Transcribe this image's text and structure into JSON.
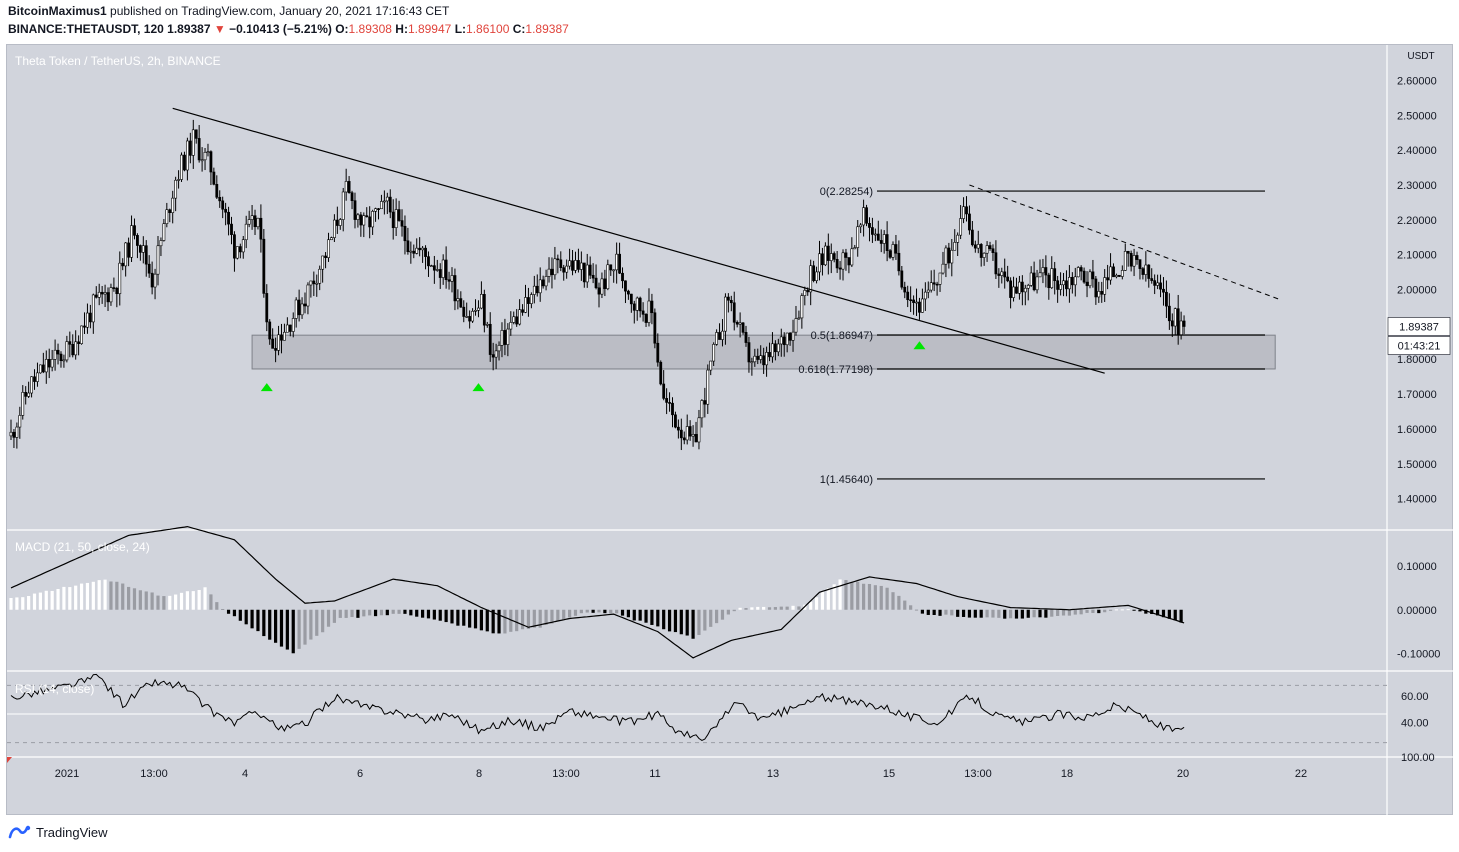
{
  "header": {
    "publisher": "BitcoinMaximus1",
    "published_text": "published on TradingView.com, January 20, 2021 17:16:43 CET",
    "symbol_line": "BINANCE:THETAUSDT, 120",
    "last_price": "1.89387",
    "change": "−0.10413 (−5.21%)",
    "open_label": "O:",
    "open": "1.89308",
    "high_label": "H:",
    "high": "1.89947",
    "low_label": "L:",
    "low": "1.86100",
    "close_label": "C:",
    "close": "1.89387"
  },
  "footer": {
    "brand": "TradingView"
  },
  "colors": {
    "background": "#d1d4dc",
    "candle_up": "#ffffff",
    "candle_down": "#000000",
    "support_zone": "#b3b6bd",
    "marker": "#00e600",
    "macd_hist_light": "#ffffff",
    "macd_hist_gray": "#9a9ca3",
    "macd_hist_dark": "#000000"
  },
  "chart_data": {
    "type": "candlestick",
    "title": "Theta Token / TetherUS, 2h, BINANCE",
    "currency": "USDT",
    "price_axis": {
      "ticks": [
        "2.60000",
        "2.50000",
        "2.40000",
        "2.30000",
        "2.20000",
        "2.10000",
        "2.00000",
        "1.90000",
        "1.80000",
        "1.70000",
        "1.60000",
        "1.50000",
        "1.40000"
      ],
      "range": [
        1.33,
        2.65
      ]
    },
    "last_price_tag": "1.89387",
    "countdown_tag": "01:43:21",
    "time_axis": [
      "2021",
      "13:00",
      "4",
      "6",
      "8",
      "13:00",
      "11",
      "13",
      "15",
      "13:00",
      "18",
      "20",
      "22"
    ],
    "anchors": [
      {
        "t": 0,
        "p": 1.58
      },
      {
        "t": 6,
        "p": 1.72
      },
      {
        "t": 12,
        "p": 1.78
      },
      {
        "t": 20,
        "p": 1.83
      },
      {
        "t": 28,
        "p": 1.95
      },
      {
        "t": 36,
        "p": 2.02
      },
      {
        "t": 42,
        "p": 2.18
      },
      {
        "t": 48,
        "p": 2.03
      },
      {
        "t": 56,
        "p": 2.32
      },
      {
        "t": 62,
        "p": 2.43
      },
      {
        "t": 68,
        "p": 2.35
      },
      {
        "t": 76,
        "p": 2.12
      },
      {
        "t": 84,
        "p": 2.2
      },
      {
        "t": 88,
        "p": 1.84
      },
      {
        "t": 94,
        "p": 1.9
      },
      {
        "t": 100,
        "p": 1.98
      },
      {
        "t": 108,
        "p": 2.12
      },
      {
        "t": 114,
        "p": 2.28
      },
      {
        "t": 120,
        "p": 2.18
      },
      {
        "t": 128,
        "p": 2.24
      },
      {
        "t": 134,
        "p": 2.15
      },
      {
        "t": 140,
        "p": 2.1
      },
      {
        "t": 148,
        "p": 2.05
      },
      {
        "t": 156,
        "p": 1.92
      },
      {
        "t": 160,
        "p": 1.96
      },
      {
        "t": 164,
        "p": 1.8
      },
      {
        "t": 170,
        "p": 1.9
      },
      {
        "t": 176,
        "p": 1.96
      },
      {
        "t": 182,
        "p": 2.05
      },
      {
        "t": 188,
        "p": 2.08
      },
      {
        "t": 194,
        "p": 2.06
      },
      {
        "t": 200,
        "p": 2.0
      },
      {
        "t": 206,
        "p": 2.08
      },
      {
        "t": 212,
        "p": 1.96
      },
      {
        "t": 218,
        "p": 1.93
      },
      {
        "t": 222,
        "p": 1.68
      },
      {
        "t": 228,
        "p": 1.6
      },
      {
        "t": 232,
        "p": 1.55
      },
      {
        "t": 238,
        "p": 1.78
      },
      {
        "t": 244,
        "p": 1.98
      },
      {
        "t": 250,
        "p": 1.82
      },
      {
        "t": 254,
        "p": 1.78
      },
      {
        "t": 260,
        "p": 1.82
      },
      {
        "t": 266,
        "p": 1.9
      },
      {
        "t": 272,
        "p": 2.05
      },
      {
        "t": 278,
        "p": 2.1
      },
      {
        "t": 284,
        "p": 2.08
      },
      {
        "t": 290,
        "p": 2.2
      },
      {
        "t": 296,
        "p": 2.15
      },
      {
        "t": 300,
        "p": 2.1
      },
      {
        "t": 306,
        "p": 1.98
      },
      {
        "t": 310,
        "p": 1.95
      },
      {
        "t": 316,
        "p": 2.05
      },
      {
        "t": 320,
        "p": 2.12
      },
      {
        "t": 324,
        "p": 2.26
      },
      {
        "t": 328,
        "p": 2.12
      },
      {
        "t": 334,
        "p": 2.08
      },
      {
        "t": 340,
        "p": 2.0
      },
      {
        "t": 346,
        "p": 2.02
      },
      {
        "t": 352,
        "p": 2.04
      },
      {
        "t": 358,
        "p": 2.02
      },
      {
        "t": 364,
        "p": 2.05
      },
      {
        "t": 370,
        "p": 2.0
      },
      {
        "t": 378,
        "p": 2.08
      },
      {
        "t": 384,
        "p": 2.06
      },
      {
        "t": 390,
        "p": 2.0
      },
      {
        "t": 395,
        "p": 1.92
      },
      {
        "t": 399,
        "p": 1.89
      }
    ],
    "n_candles": 400,
    "fibonacci": [
      {
        "label": "0(2.28254)",
        "price": 2.28254
      },
      {
        "label": "0.5(1.86947)",
        "price": 1.86947
      },
      {
        "label": "0.618(1.77198)",
        "price": 1.77198
      },
      {
        "label": "1(1.45640)",
        "price": 1.4564
      }
    ],
    "support_zone": {
      "from_t": 82,
      "to_t": 430,
      "low": 1.772,
      "high": 1.869
    },
    "descending_trendline": {
      "t1": 55,
      "p1": 2.52,
      "t2": 372,
      "p2": 1.76
    },
    "dashed_trendline": {
      "t1": 326,
      "p1": 2.3,
      "t2": 432,
      "p2": 1.97
    },
    "support_markers": [
      {
        "t": 87,
        "p": 1.72
      },
      {
        "t": 159,
        "p": 1.72
      },
      {
        "t": 309,
        "p": 1.84
      }
    ],
    "macd": {
      "label": "MACD (21, 50, close, 24)",
      "ticks": [
        "0.10000",
        "0.00000",
        "-0.10000"
      ],
      "range": [
        -0.14,
        0.18
      ],
      "line_anchors": [
        {
          "t": 0,
          "v": 0.05
        },
        {
          "t": 20,
          "v": 0.11
        },
        {
          "t": 40,
          "v": 0.17
        },
        {
          "t": 60,
          "v": 0.19
        },
        {
          "t": 76,
          "v": 0.16
        },
        {
          "t": 90,
          "v": 0.07
        },
        {
          "t": 100,
          "v": 0.015
        },
        {
          "t": 110,
          "v": 0.02
        },
        {
          "t": 130,
          "v": 0.07
        },
        {
          "t": 145,
          "v": 0.055
        },
        {
          "t": 160,
          "v": 0.005
        },
        {
          "t": 176,
          "v": -0.04
        },
        {
          "t": 190,
          "v": -0.02
        },
        {
          "t": 205,
          "v": -0.01
        },
        {
          "t": 220,
          "v": -0.05
        },
        {
          "t": 232,
          "v": -0.11
        },
        {
          "t": 245,
          "v": -0.07
        },
        {
          "t": 262,
          "v": -0.045
        },
        {
          "t": 275,
          "v": 0.04
        },
        {
          "t": 292,
          "v": 0.075
        },
        {
          "t": 308,
          "v": 0.06
        },
        {
          "t": 322,
          "v": 0.03
        },
        {
          "t": 340,
          "v": 0.005
        },
        {
          "t": 360,
          "v": 0.0
        },
        {
          "t": 380,
          "v": 0.01
        },
        {
          "t": 399,
          "v": -0.03
        }
      ],
      "hist_anchors": [
        {
          "t": 0,
          "v": 0.025
        },
        {
          "t": 32,
          "v": 0.07
        },
        {
          "t": 52,
          "v": 0.03
        },
        {
          "t": 66,
          "v": 0.05
        },
        {
          "t": 72,
          "v": 0.0
        },
        {
          "t": 96,
          "v": -0.1
        },
        {
          "t": 112,
          "v": -0.02
        },
        {
          "t": 134,
          "v": -0.008
        },
        {
          "t": 166,
          "v": -0.055
        },
        {
          "t": 180,
          "v": -0.04
        },
        {
          "t": 195,
          "v": -0.005
        },
        {
          "t": 206,
          "v": -0.01
        },
        {
          "t": 232,
          "v": -0.065
        },
        {
          "t": 248,
          "v": 0.005
        },
        {
          "t": 270,
          "v": 0.01
        },
        {
          "t": 282,
          "v": 0.07
        },
        {
          "t": 298,
          "v": 0.05
        },
        {
          "t": 310,
          "v": -0.01
        },
        {
          "t": 336,
          "v": -0.02
        },
        {
          "t": 358,
          "v": -0.015
        },
        {
          "t": 380,
          "v": 0.002
        },
        {
          "t": 399,
          "v": -0.03
        }
      ]
    },
    "rsi": {
      "label": "RSI (14, close)",
      "ticks": [
        "60.00",
        "40.00",
        "100.00"
      ],
      "range": [
        20,
        80
      ],
      "levels": [
        70,
        50,
        30
      ],
      "anchors": [
        {
          "t": 0,
          "v": 62
        },
        {
          "t": 10,
          "v": 66
        },
        {
          "t": 20,
          "v": 70
        },
        {
          "t": 30,
          "v": 76
        },
        {
          "t": 38,
          "v": 57
        },
        {
          "t": 48,
          "v": 72
        },
        {
          "t": 58,
          "v": 70
        },
        {
          "t": 68,
          "v": 52
        },
        {
          "t": 76,
          "v": 44
        },
        {
          "t": 84,
          "v": 52
        },
        {
          "t": 92,
          "v": 39
        },
        {
          "t": 100,
          "v": 43
        },
        {
          "t": 110,
          "v": 62
        },
        {
          "t": 120,
          "v": 55
        },
        {
          "t": 130,
          "v": 52
        },
        {
          "t": 140,
          "v": 46
        },
        {
          "t": 150,
          "v": 50
        },
        {
          "t": 160,
          "v": 38
        },
        {
          "t": 170,
          "v": 46
        },
        {
          "t": 180,
          "v": 40
        },
        {
          "t": 190,
          "v": 52
        },
        {
          "t": 200,
          "v": 48
        },
        {
          "t": 210,
          "v": 44
        },
        {
          "t": 220,
          "v": 50
        },
        {
          "t": 228,
          "v": 36
        },
        {
          "t": 236,
          "v": 32
        },
        {
          "t": 246,
          "v": 58
        },
        {
          "t": 256,
          "v": 46
        },
        {
          "t": 266,
          "v": 54
        },
        {
          "t": 276,
          "v": 62
        },
        {
          "t": 286,
          "v": 58
        },
        {
          "t": 296,
          "v": 56
        },
        {
          "t": 306,
          "v": 48
        },
        {
          "t": 316,
          "v": 44
        },
        {
          "t": 326,
          "v": 63
        },
        {
          "t": 336,
          "v": 48
        },
        {
          "t": 346,
          "v": 44
        },
        {
          "t": 356,
          "v": 50
        },
        {
          "t": 366,
          "v": 48
        },
        {
          "t": 376,
          "v": 56
        },
        {
          "t": 384,
          "v": 50
        },
        {
          "t": 392,
          "v": 40
        },
        {
          "t": 399,
          "v": 38
        }
      ]
    }
  }
}
